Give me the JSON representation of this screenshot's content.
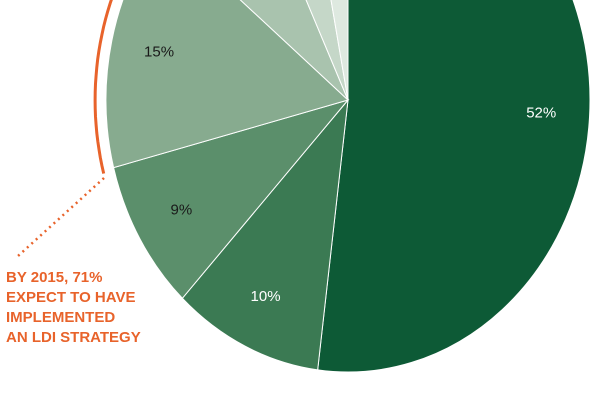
{
  "chart_data": {
    "type": "pie",
    "categories": [
      null,
      null,
      null,
      null,
      null,
      null,
      null
    ],
    "values": [
      52,
      10,
      9,
      15,
      7,
      4,
      3
    ],
    "value_labels": [
      "52%",
      "10%",
      "9%",
      "15%",
      null,
      null,
      null
    ],
    "colors": [
      "#0d5a36",
      "#3b7a53",
      "#5b8f6b",
      "#87ab8f",
      "#a9c3ae",
      "#c5d7c8",
      "#dee9e0"
    ],
    "annotation": [
      "BY 2015, 71%",
      "EXPECT TO HAVE",
      "IMPLEMENTED",
      "AN LDI STRATEGY"
    ],
    "annotation_color": "#e8632b"
  }
}
